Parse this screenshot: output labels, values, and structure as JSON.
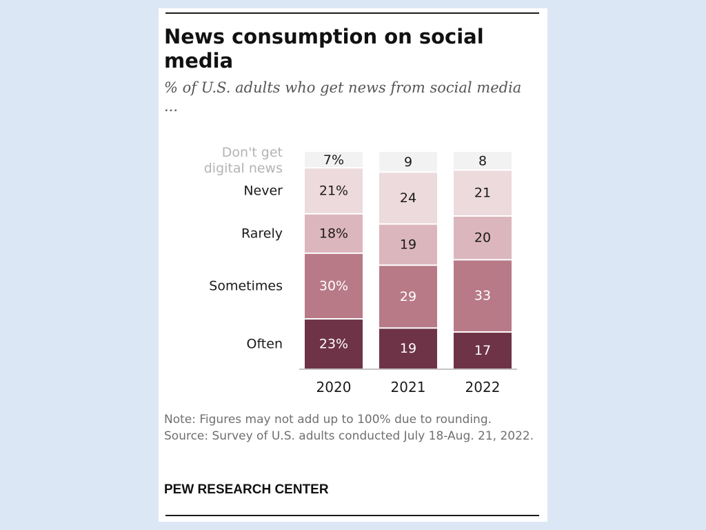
{
  "title": "News consumption on social media",
  "subtitle": "% of U.S. adults who get news from social media ...",
  "note": "Note: Figures may not add up to 100% due to rounding.",
  "source": "Source: Survey of U.S. adults conducted July 18-Aug. 21, 2022.",
  "brand": "PEW RESEARCH CENTER",
  "chart_data": {
    "type": "bar",
    "stacked": true,
    "orientation": "vertical",
    "categories": [
      "2020",
      "2021",
      "2022"
    ],
    "series": [
      {
        "name": "Often",
        "values": [
          23,
          19,
          17
        ],
        "labels": [
          "23%",
          "19",
          "17"
        ],
        "color": "#6e3346",
        "text_color": "#ffffff"
      },
      {
        "name": "Sometimes",
        "values": [
          30,
          29,
          33
        ],
        "labels": [
          "30%",
          "29",
          "33"
        ],
        "color": "#b87a87",
        "text_color": "#ffffff"
      },
      {
        "name": "Rarely",
        "values": [
          18,
          19,
          20
        ],
        "labels": [
          "18%",
          "19",
          "20"
        ],
        "color": "#dcb6bd",
        "text_color": "#1a1a1a"
      },
      {
        "name": "Never",
        "values": [
          21,
          24,
          21
        ],
        "labels": [
          "21%",
          "24",
          "21"
        ],
        "color": "#eddadd",
        "text_color": "#1a1a1a"
      },
      {
        "name": "Don't get digital news",
        "values": [
          7,
          9,
          8
        ],
        "labels": [
          "7%",
          "9",
          "8"
        ],
        "color": "#f2f2f2",
        "text_color": "#1a1a1a"
      }
    ],
    "legend_position": "left",
    "title": "News consumption on social media",
    "xlabel": "",
    "ylabel": "% of U.S. adults"
  }
}
